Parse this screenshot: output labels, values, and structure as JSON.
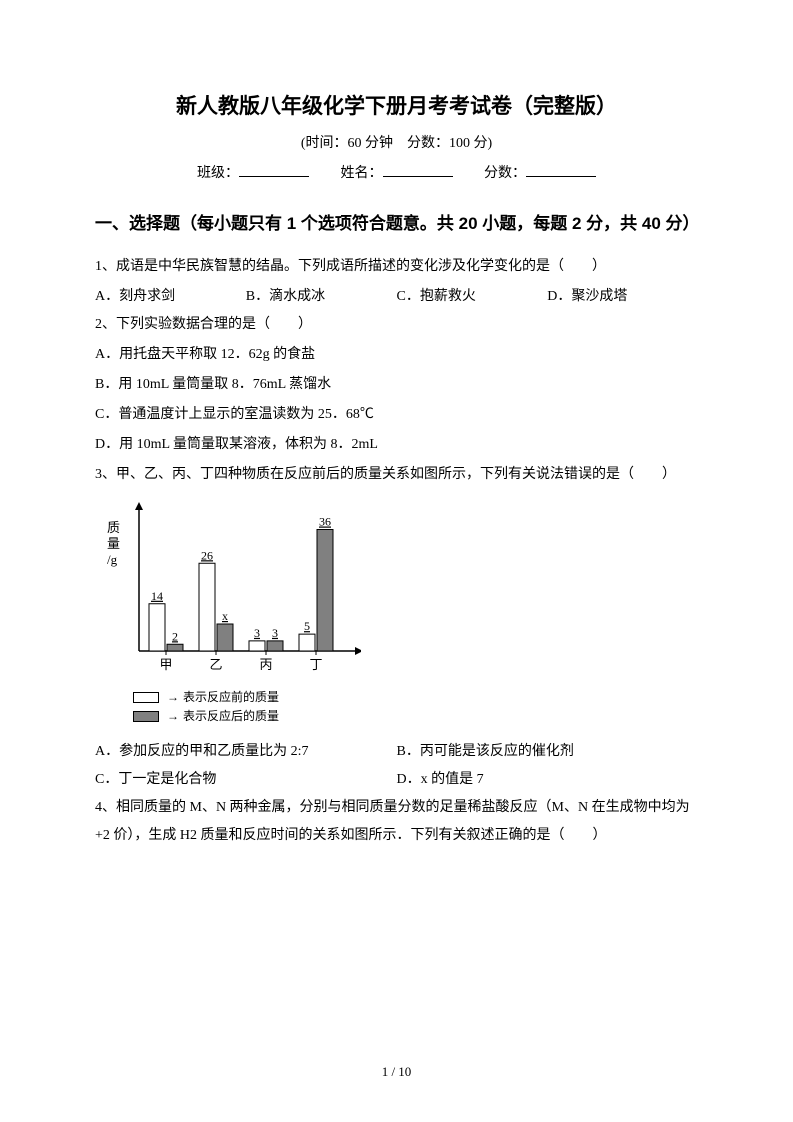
{
  "title": "新人教版八年级化学下册月考考试卷（完整版）",
  "subtitle_pre": "(时间：",
  "time": "60 分钟",
  "subtitle_mid": "　分数：",
  "score": "100 分",
  "subtitle_post": ")",
  "info": {
    "class_label": "班级：",
    "name_label": "姓名：",
    "score_label": "分数："
  },
  "section1": "一、选择题（每小题只有 1 个选项符合题意。共 20 小题，每题 2 分，共 40 分）",
  "q1": {
    "stem": "1、成语是中华民族智慧的结晶。下列成语所描述的变化涉及化学变化的是（　　）",
    "a": "A．刻舟求剑",
    "b": "B．滴水成冰",
    "c": "C．抱薪救火",
    "d": "D．聚沙成塔"
  },
  "q2": {
    "stem": "2、下列实验数据合理的是（　　）",
    "a": "A．用托盘天平称取 12．62g 的食盐",
    "b": "B．用 10mL 量筒量取 8．76mL 蒸馏水",
    "c": "C．普通温度计上显示的室温读数为 25．68℃",
    "d": "D．用 10mL 量筒量取某溶液，体积为 8．2mL"
  },
  "q3": {
    "stem": "3、甲、乙、丙、丁四种物质在反应前后的质量关系如图所示，下列有关说法错误的是（　　）",
    "a": "A．参加反应的甲和乙质量比为 2:7",
    "b": "B．丙可能是该反应的催化剂",
    "c": "C．丁一定是化合物",
    "d": "D．x 的值是 7"
  },
  "q4": {
    "stem": "4、相同质量的 M、N 两种金属，分别与相同质量分数的足量稀盐酸反应（M、N 在生成物中均为+2 价），生成 H2 质量和反应时间的关系如图所示．下列有关叙述正确的是（　　）"
  },
  "chart": {
    "type": "bar",
    "ylabel_line1": "质",
    "ylabel_line2": "量",
    "ylabel_line3": "/g",
    "categories": [
      "甲",
      "乙",
      "丙",
      "丁"
    ],
    "before_values": [
      14,
      26,
      3,
      5
    ],
    "after_values": [
      2,
      "x",
      3,
      36
    ],
    "after_heights": [
      2,
      8,
      3,
      36
    ],
    "max_y": 40,
    "bar_before_fill": "#ffffff",
    "bar_after_fill": "#808080",
    "bar_stroke": "#000000",
    "axis_color": "#000000",
    "legend_before": "表示反应前的质量",
    "legend_after": "表示反应后的质量"
  },
  "footer": "1  /  10"
}
